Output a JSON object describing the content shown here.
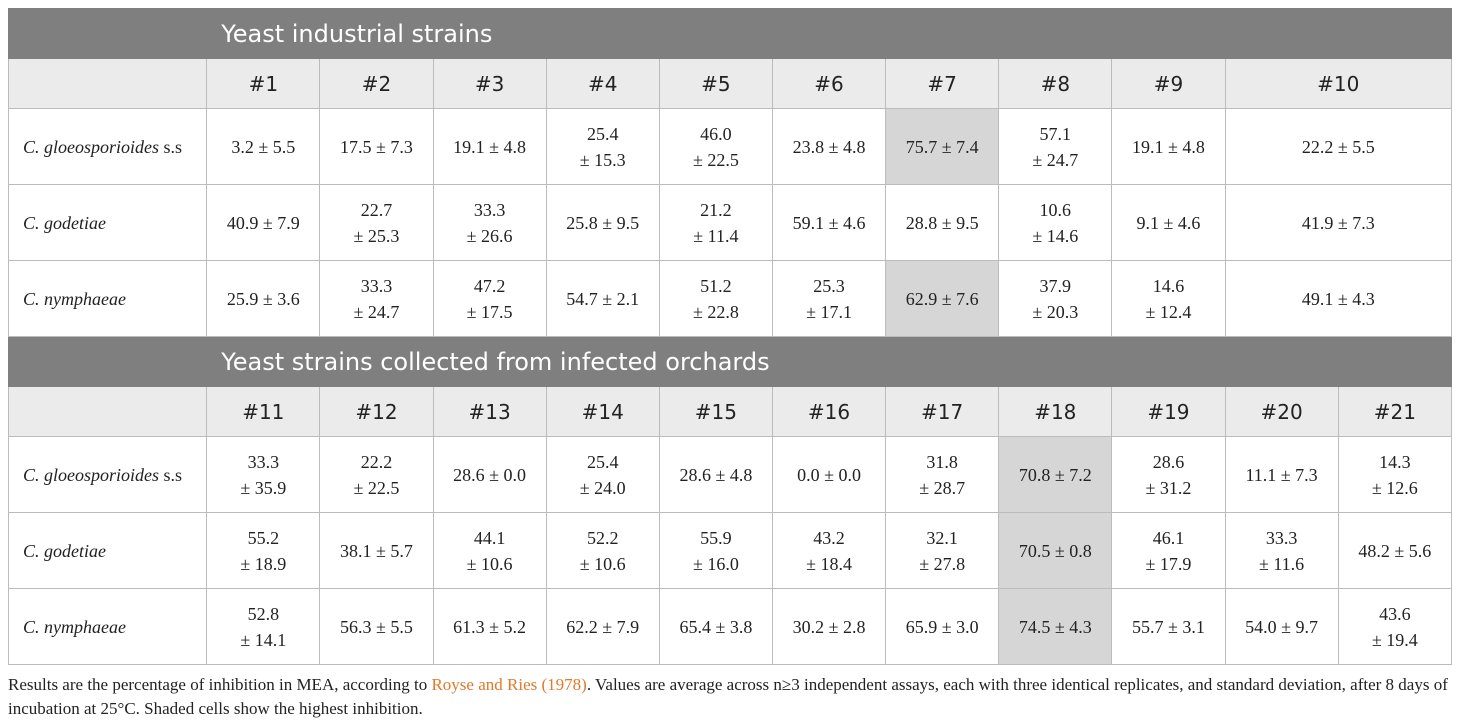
{
  "section1": {
    "title": "Yeast industrial strains",
    "columns": [
      "#1",
      "#2",
      "#3",
      "#4",
      "#5",
      "#6",
      "#7",
      "#8",
      "#9",
      "#10"
    ],
    "rows": [
      {
        "name": "C. gloeosporioides",
        "suffix": " s.s",
        "values": [
          [
            "3.2 ± 5.5"
          ],
          [
            "17.5 ± 7.3"
          ],
          [
            "19.1 ± 4.8"
          ],
          [
            "25.4",
            "± 15.3"
          ],
          [
            "46.0",
            "± 22.5"
          ],
          [
            "23.8 ± 4.8"
          ],
          [
            "75.7 ± 7.4"
          ],
          [
            "57.1",
            "± 24.7"
          ],
          [
            "19.1 ± 4.8"
          ],
          [
            "22.2 ± 5.5"
          ]
        ]
      },
      {
        "name": "C. godetiae",
        "suffix": "",
        "values": [
          [
            "40.9 ± 7.9"
          ],
          [
            "22.7",
            "± 25.3"
          ],
          [
            "33.3",
            "± 26.6"
          ],
          [
            "25.8 ± 9.5"
          ],
          [
            "21.2",
            "± 11.4"
          ],
          [
            "59.1 ± 4.6"
          ],
          [
            "28.8 ± 9.5"
          ],
          [
            "10.6",
            "± 14.6"
          ],
          [
            "9.1 ± 4.6"
          ],
          [
            "41.9 ± 7.3"
          ]
        ]
      },
      {
        "name": "C. nymphaeae",
        "suffix": "",
        "values": [
          [
            "25.9 ± 3.6"
          ],
          [
            "33.3",
            "± 24.7"
          ],
          [
            "47.2",
            "± 17.5"
          ],
          [
            "54.7 ± 2.1"
          ],
          [
            "51.2",
            "± 22.8"
          ],
          [
            "25.3",
            "± 17.1"
          ],
          [
            "62.9 ± 7.6"
          ],
          [
            "37.9",
            "± 20.3"
          ],
          [
            "14.6",
            "± 12.4"
          ],
          [
            "49.1 ± 4.3"
          ]
        ]
      }
    ]
  },
  "section2": {
    "title": "Yeast strains collected from infected orchards",
    "columns": [
      "#11",
      "#12",
      "#13",
      "#14",
      "#15",
      "#16",
      "#17",
      "#18",
      "#19",
      "#20",
      "#21"
    ],
    "rows": [
      {
        "name": "C. gloeosporioides",
        "suffix": " s.s",
        "values": [
          [
            "33.3",
            "± 35.9"
          ],
          [
            "22.2",
            "± 22.5"
          ],
          [
            "28.6 ± 0.0"
          ],
          [
            "25.4",
            "± 24.0"
          ],
          [
            "28.6 ± 4.8"
          ],
          [
            "0.0 ± 0.0"
          ],
          [
            "31.8",
            "± 28.7"
          ],
          [
            "70.8 ± 7.2"
          ],
          [
            "28.6",
            "± 31.2"
          ],
          [
            "11.1 ± 7.3"
          ],
          [
            "14.3",
            "± 12.6"
          ]
        ]
      },
      {
        "name": "C. godetiae",
        "suffix": "",
        "values": [
          [
            "55.2",
            "± 18.9"
          ],
          [
            "38.1 ± 5.7"
          ],
          [
            "44.1",
            "± 10.6"
          ],
          [
            "52.2",
            "± 10.6"
          ],
          [
            "55.9",
            "± 16.0"
          ],
          [
            "43.2",
            "± 18.4"
          ],
          [
            "32.1",
            "± 27.8"
          ],
          [
            "70.5 ± 0.8"
          ],
          [
            "46.1",
            "± 17.9"
          ],
          [
            "33.3",
            "± 11.6"
          ],
          [
            "48.2 ± 5.6"
          ]
        ]
      },
      {
        "name": "C. nymphaeae",
        "suffix": "",
        "values": [
          [
            "52.8",
            "± 14.1"
          ],
          [
            "56.3 ± 5.5"
          ],
          [
            "61.3 ± 5.2"
          ],
          [
            "62.2 ± 7.9"
          ],
          [
            "65.4 ± 3.8"
          ],
          [
            "30.2 ± 2.8"
          ],
          [
            "65.9 ± 3.0"
          ],
          [
            "74.5 ± 4.3"
          ],
          [
            "55.7 ± 3.1"
          ],
          [
            "54.0 ± 9.7"
          ],
          [
            "43.6",
            "± 19.4"
          ]
        ]
      }
    ]
  },
  "highlight_color": "#d6d6d6",
  "footnote": {
    "before": "Results are the percentage of inhibition in MEA, according to ",
    "ref": "Royse and Ries (1978)",
    "after": ". Values are average across n≥3 independent assays, each with three identical replicates, and standard deviation, after 8 days of incubation at 25°C. Shaded cells show the highest inhibition."
  }
}
